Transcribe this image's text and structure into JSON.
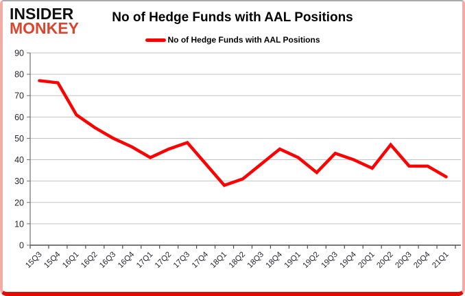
{
  "logo": {
    "line1": "INSIDER",
    "line2": "MONKEY"
  },
  "header": {
    "title": "No of Hedge Funds with AAL Positions"
  },
  "legend": {
    "label": "No of Hedge Funds with AAL Positions",
    "swatch_color": "#ff0000"
  },
  "colors": {
    "series": "#fe0000",
    "gridline": "#c3c3c3",
    "axis": "#6e6e6e",
    "axis_text": "#262633",
    "frame_bottom": "#e30b00",
    "frame_sides": "#f2aca6",
    "logo_red": "#d9452e"
  },
  "chart_data": {
    "type": "line",
    "title": "No of Hedge Funds with AAL Positions",
    "xlabel": "",
    "ylabel": "",
    "ylim": [
      0,
      90
    ],
    "ytick_step": 10,
    "grid": true,
    "legend_position": "top-center",
    "categories": [
      "15Q3",
      "15Q4",
      "16Q1",
      "16Q2",
      "16Q3",
      "16Q4",
      "17Q1",
      "17Q2",
      "17Q3",
      "17Q4",
      "18Q1",
      "18Q2",
      "18Q3",
      "18Q4",
      "19Q1",
      "19Q2",
      "19Q3",
      "19Q4",
      "20Q1",
      "20Q2",
      "20Q3",
      "20Q4",
      "21Q1"
    ],
    "series": [
      {
        "name": "No of Hedge Funds with AAL Positions",
        "color": "#fe0000",
        "values": [
          77,
          76,
          61,
          55,
          50,
          46,
          41,
          45,
          48,
          38,
          28,
          31,
          38,
          45,
          41,
          34,
          43,
          40,
          36,
          47,
          37,
          37,
          32
        ]
      }
    ]
  }
}
